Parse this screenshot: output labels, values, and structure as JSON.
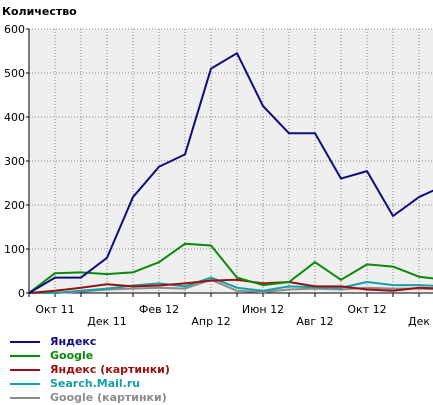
{
  "chart_data": {
    "type": "line",
    "ylabel": "Количество",
    "ylim": [
      0,
      600
    ],
    "yticks": [
      0,
      100,
      200,
      300,
      400,
      500,
      600
    ],
    "x": [
      "Сен 11",
      "Окт 11",
      "Ноя 11",
      "Дек 11",
      "Янв 12",
      "Фев 12",
      "Мар 12",
      "Апр 12",
      "Май 12",
      "Июн 12",
      "Июл 12",
      "Авг 12",
      "Сен 12",
      "Окт 12",
      "Ноя 12",
      "Дек 12",
      "Янв 13"
    ],
    "xtick_labels": [
      "Окт 11",
      "Дек 11",
      "Фев 12",
      "Апр 12",
      "Июн 12",
      "Авг 12",
      "Окт 12",
      "Дек"
    ],
    "grid": true,
    "legend_position": "bottom",
    "series": [
      {
        "name": "Яндекс",
        "color": "#0d0d80",
        "values": [
          0,
          35,
          35,
          80,
          218,
          287,
          315,
          510,
          545,
          425,
          363,
          363,
          260,
          277,
          175,
          218,
          245
        ]
      },
      {
        "name": "Google",
        "color": "#0a8a0a",
        "values": [
          0,
          45,
          47,
          43,
          47,
          70,
          112,
          108,
          35,
          18,
          25,
          70,
          30,
          65,
          60,
          37,
          30
        ]
      },
      {
        "name": "Яндекс (картинки)",
        "color": "#9a1010",
        "values": [
          0,
          5,
          12,
          20,
          15,
          17,
          22,
          28,
          30,
          22,
          25,
          15,
          15,
          8,
          5,
          12,
          10
        ]
      },
      {
        "name": "Search.Mail.ru",
        "color": "#13a0a8",
        "values": [
          0,
          0,
          5,
          10,
          17,
          22,
          15,
          35,
          12,
          5,
          15,
          13,
          12,
          25,
          18,
          18,
          15
        ]
      },
      {
        "name": "Google (картинки)",
        "color": "#8c8c8c",
        "values": [
          0,
          0,
          3,
          8,
          10,
          12,
          10,
          30,
          5,
          2,
          8,
          10,
          8,
          12,
          10,
          10,
          8
        ]
      }
    ]
  }
}
